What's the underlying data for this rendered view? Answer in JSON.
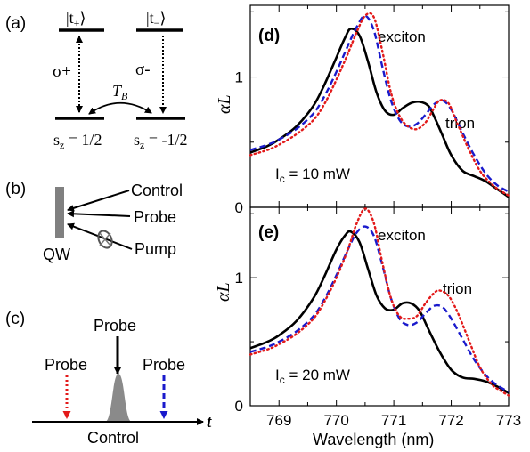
{
  "panels": {
    "a": {
      "label": "(a)",
      "level_tplus": "|t",
      "level_tplus_sub": "+",
      "level_tminus": "|t",
      "level_tminus_sub": "−",
      "ket_close": "⟩",
      "sigma_plus": "σ+",
      "sigma_minus": "σ-",
      "tb": "T",
      "tb_sub": "B",
      "sz_left": "s",
      "sz_left_sub": "z",
      "sz_left_val": " = 1/2",
      "sz_right": "s",
      "sz_right_sub": "z",
      "sz_right_val": " = -1/2"
    },
    "b": {
      "label": "(b)",
      "control": "Control",
      "probe": "Probe",
      "pump": "Pump",
      "qw": "QW"
    },
    "c": {
      "label": "(c)",
      "probe_left": "Probe",
      "probe_center": "Probe",
      "probe_right": "Probe",
      "control": "Control",
      "t_axis": "t"
    }
  },
  "colors": {
    "solid": "#000000",
    "dashed": "#1a1acc",
    "dotted": "#e31a1a",
    "pulse": "#8a8a8a"
  },
  "chart_data": [
    {
      "type": "line",
      "panel_label": "(d)",
      "annotation": "I",
      "annotation_sub": "c",
      "annotation_value": " = 10 mW",
      "peak_labels": [
        "exciton",
        "trion"
      ],
      "ylabel": "αL",
      "xlim": [
        768.5,
        773
      ],
      "ylim": [
        0,
        1.55
      ],
      "xticks": [
        769,
        770,
        771,
        772,
        773
      ],
      "yticks": [
        0,
        1
      ],
      "series": [
        {
          "style": "solid",
          "x": [
            768.5,
            768.8,
            769.0,
            769.3,
            769.6,
            769.8,
            770.0,
            770.15,
            770.25,
            770.4,
            770.55,
            770.7,
            770.85,
            771.0,
            771.15,
            771.3,
            771.45,
            771.6,
            771.7,
            771.85,
            772.0,
            772.2,
            772.4,
            772.6,
            772.8,
            773.0
          ],
          "y": [
            0.42,
            0.47,
            0.52,
            0.62,
            0.78,
            0.95,
            1.15,
            1.3,
            1.37,
            1.32,
            1.12,
            0.88,
            0.74,
            0.71,
            0.76,
            0.8,
            0.81,
            0.78,
            0.7,
            0.55,
            0.4,
            0.28,
            0.24,
            0.2,
            0.14,
            0.08
          ]
        },
        {
          "style": "dashed",
          "x": [
            768.5,
            768.8,
            769.0,
            769.3,
            769.6,
            769.8,
            770.0,
            770.2,
            770.35,
            770.5,
            770.65,
            770.8,
            770.95,
            771.1,
            771.25,
            771.4,
            771.55,
            771.7,
            771.85,
            772.0,
            772.2,
            772.4,
            772.6,
            772.8,
            773.0
          ],
          "y": [
            0.44,
            0.48,
            0.52,
            0.6,
            0.72,
            0.86,
            1.04,
            1.24,
            1.38,
            1.47,
            1.36,
            1.08,
            0.82,
            0.67,
            0.62,
            0.64,
            0.71,
            0.79,
            0.82,
            0.75,
            0.57,
            0.4,
            0.26,
            0.17,
            0.12
          ]
        },
        {
          "style": "dotted",
          "x": [
            768.5,
            768.8,
            769.0,
            769.3,
            769.6,
            769.8,
            770.0,
            770.2,
            770.35,
            770.5,
            770.65,
            770.8,
            770.95,
            771.1,
            771.25,
            771.4,
            771.55,
            771.7,
            771.8,
            771.95,
            772.1,
            772.3,
            772.5,
            772.7,
            772.85,
            773.0
          ],
          "y": [
            0.4,
            0.44,
            0.48,
            0.56,
            0.67,
            0.8,
            0.98,
            1.18,
            1.34,
            1.47,
            1.46,
            1.2,
            0.88,
            0.7,
            0.62,
            0.6,
            0.65,
            0.76,
            0.82,
            0.8,
            0.65,
            0.45,
            0.28,
            0.18,
            0.13,
            0.09
          ]
        }
      ]
    },
    {
      "type": "line",
      "panel_label": "(e)",
      "annotation": "I",
      "annotation_sub": "c",
      "annotation_value": " = 20 mW",
      "peak_labels": [
        "exciton",
        "trion"
      ],
      "ylabel": "αL",
      "xlabel": "Wavelength (nm)",
      "xlim": [
        768.5,
        773
      ],
      "ylim": [
        0,
        1.55
      ],
      "xticks": [
        769,
        770,
        771,
        772,
        773
      ],
      "yticks": [
        0,
        1
      ],
      "series": [
        {
          "style": "solid",
          "x": [
            768.5,
            768.8,
            769.0,
            769.3,
            769.6,
            769.8,
            770.0,
            770.15,
            770.25,
            770.4,
            770.55,
            770.7,
            770.85,
            771.0,
            771.15,
            771.3,
            771.45,
            771.6,
            771.8,
            772.0,
            772.2,
            772.4,
            772.6,
            772.8,
            773.0
          ],
          "y": [
            0.45,
            0.5,
            0.55,
            0.66,
            0.84,
            1.02,
            1.22,
            1.33,
            1.36,
            1.28,
            1.07,
            0.86,
            0.76,
            0.75,
            0.8,
            0.8,
            0.74,
            0.6,
            0.42,
            0.28,
            0.22,
            0.21,
            0.19,
            0.15,
            0.1
          ]
        },
        {
          "style": "dashed",
          "x": [
            768.5,
            768.8,
            769.0,
            769.3,
            769.6,
            769.8,
            770.0,
            770.2,
            770.35,
            770.5,
            770.65,
            770.8,
            770.95,
            771.1,
            771.25,
            771.4,
            771.55,
            771.7,
            771.85,
            772.0,
            772.2,
            772.4,
            772.6,
            772.8,
            773.0
          ],
          "y": [
            0.42,
            0.46,
            0.5,
            0.58,
            0.7,
            0.84,
            1.02,
            1.22,
            1.35,
            1.4,
            1.33,
            1.1,
            0.84,
            0.68,
            0.63,
            0.65,
            0.72,
            0.78,
            0.77,
            0.68,
            0.52,
            0.36,
            0.24,
            0.16,
            0.11
          ]
        },
        {
          "style": "dotted",
          "x": [
            768.5,
            768.8,
            769.0,
            769.3,
            769.6,
            769.8,
            770.0,
            770.2,
            770.35,
            770.5,
            770.65,
            770.8,
            770.95,
            771.1,
            771.25,
            771.4,
            771.55,
            771.7,
            771.8,
            771.95,
            772.1,
            772.3,
            772.5,
            772.7,
            772.85,
            773.0
          ],
          "y": [
            0.4,
            0.44,
            0.48,
            0.56,
            0.68,
            0.82,
            1.0,
            1.22,
            1.42,
            1.54,
            1.43,
            1.12,
            0.84,
            0.7,
            0.68,
            0.7,
            0.8,
            0.88,
            0.9,
            0.86,
            0.74,
            0.52,
            0.3,
            0.17,
            0.12,
            0.08
          ]
        }
      ]
    }
  ]
}
